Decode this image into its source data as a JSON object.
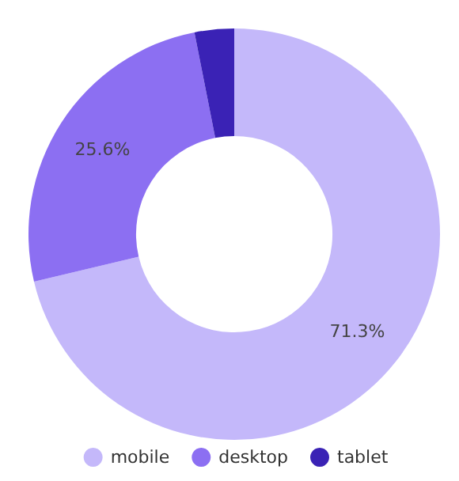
{
  "chart_data": {
    "type": "donut",
    "categories": [
      "mobile",
      "desktop",
      "tablet"
    ],
    "values": [
      71.3,
      25.6,
      3.1
    ],
    "colors": [
      "#c4b8fa",
      "#8c6ff2",
      "#3a22b5"
    ],
    "value_labels": [
      "71.3%",
      "25.6%",
      null
    ],
    "legend": "bottom"
  }
}
